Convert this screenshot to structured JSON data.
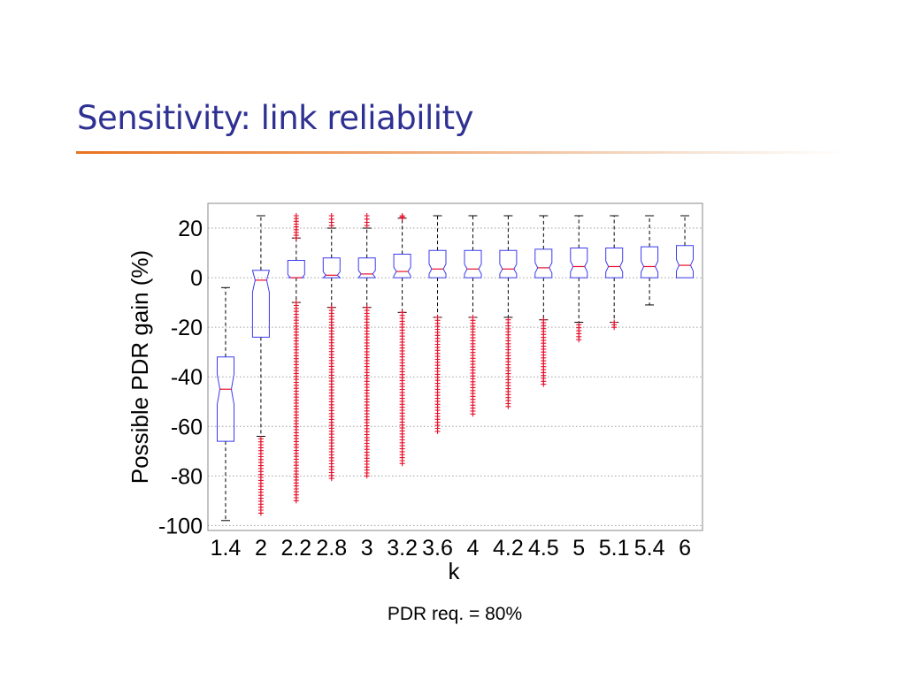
{
  "slide": {
    "title": "Sensitivity: link reliability",
    "caption": "PDR req. = 80%"
  },
  "colors": {
    "title": "#2e3192",
    "rule": "#e8731f",
    "box": "#3b3bf0",
    "median": "#e8112d",
    "outlier": "#e8112d",
    "whisker": "#000000",
    "grid": "#a0a0a0"
  },
  "chart_data": {
    "type": "box",
    "title": "",
    "xlabel": "k",
    "ylabel": "Possible PDR gain (%)",
    "ylim": [
      -102,
      30
    ],
    "yticks": [
      20,
      0,
      -20,
      -40,
      -60,
      -80,
      -100
    ],
    "grid": true,
    "notched": true,
    "categories": [
      "1.4",
      "2",
      "2.2",
      "2.8",
      "3",
      "3.2",
      "3.6",
      "4",
      "4.2",
      "4.5",
      "5",
      "5.1",
      "5.4",
      "6"
    ],
    "boxes": [
      {
        "k": "1.4",
        "whisker_low": -98,
        "q1": -66,
        "median": -45,
        "q3": -32,
        "whisker_high": -4,
        "outliers_low": [],
        "outliers_high": []
      },
      {
        "k": "2",
        "whisker_low": -64,
        "q1": -24,
        "median": -1,
        "q3": 3,
        "whisker_high": 25,
        "outliers_low": [
          -65,
          -95
        ],
        "outliers_high": []
      },
      {
        "k": "2.2",
        "whisker_low": -10,
        "q1": 0,
        "median": 0,
        "q3": 7,
        "whisker_high": 16,
        "outliers_low": [
          -10,
          -90
        ],
        "outliers_high": [
          16,
          25
        ]
      },
      {
        "k": "2.8",
        "whisker_low": -12,
        "q1": 0,
        "median": 1,
        "q3": 8,
        "whisker_high": 20,
        "outliers_low": [
          -12,
          -81
        ],
        "outliers_high": [
          21,
          25
        ]
      },
      {
        "k": "3",
        "whisker_low": -12,
        "q1": 0,
        "median": 1.5,
        "q3": 8,
        "whisker_high": 20,
        "outliers_low": [
          -12,
          -80
        ],
        "outliers_high": [
          21,
          25
        ]
      },
      {
        "k": "3.2",
        "whisker_low": -14,
        "q1": 0,
        "median": 2.5,
        "q3": 9.5,
        "whisker_high": 24,
        "outliers_low": [
          -14,
          -75
        ],
        "outliers_high": [
          24,
          25
        ]
      },
      {
        "k": "3.6",
        "whisker_low": -16,
        "q1": 0,
        "median": 3.5,
        "q3": 11,
        "whisker_high": 25,
        "outliers_low": [
          -16,
          -62
        ],
        "outliers_high": []
      },
      {
        "k": "4",
        "whisker_low": -16,
        "q1": 0,
        "median": 3.5,
        "q3": 11,
        "whisker_high": 25,
        "outliers_low": [
          -16,
          -55
        ],
        "outliers_high": []
      },
      {
        "k": "4.2",
        "whisker_low": -16,
        "q1": 0,
        "median": 3.5,
        "q3": 11,
        "whisker_high": 25,
        "outliers_low": [
          -17,
          -52
        ],
        "outliers_high": []
      },
      {
        "k": "4.5",
        "whisker_low": -17,
        "q1": 0,
        "median": 4,
        "q3": 11.5,
        "whisker_high": 25,
        "outliers_low": [
          -17,
          -43
        ],
        "outliers_high": []
      },
      {
        "k": "5",
        "whisker_low": -18,
        "q1": 0,
        "median": 4.5,
        "q3": 12,
        "whisker_high": 25,
        "outliers_low": [
          -19,
          -25
        ],
        "outliers_high": []
      },
      {
        "k": "5.1",
        "whisker_low": -18,
        "q1": 0,
        "median": 4.5,
        "q3": 12,
        "whisker_high": 25,
        "outliers_low": [
          -18,
          -20
        ],
        "outliers_high": []
      },
      {
        "k": "5.4",
        "whisker_low": -11,
        "q1": 0,
        "median": 4.5,
        "q3": 12.5,
        "whisker_high": 25,
        "outliers_low": [],
        "outliers_high": []
      },
      {
        "k": "6",
        "whisker_low": 0,
        "q1": 0,
        "median": 5,
        "q3": 13,
        "whisker_high": 25,
        "outliers_low": [],
        "outliers_high": []
      }
    ]
  }
}
